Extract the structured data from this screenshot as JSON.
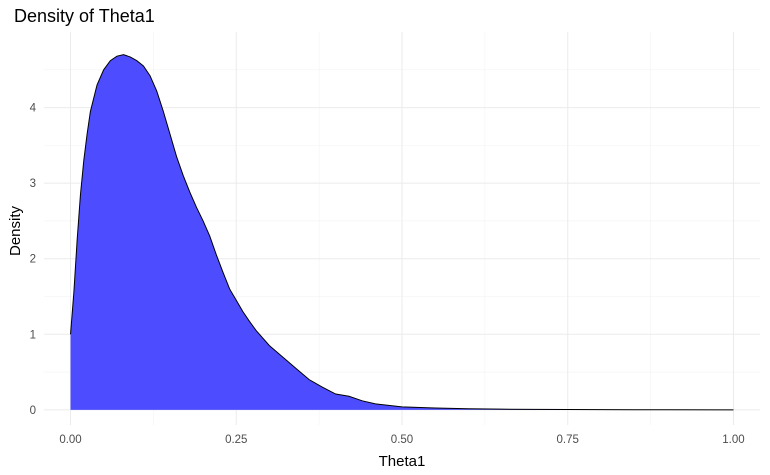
{
  "chart_data": {
    "type": "area",
    "title": "Density of Theta1",
    "xlabel": "Theta1",
    "ylabel": "Density",
    "xlim": [
      -0.04,
      1.04
    ],
    "ylim": [
      -0.2,
      5.0
    ],
    "x_ticks": [
      0.0,
      0.25,
      0.5,
      0.75,
      1.0
    ],
    "x_tick_labels": [
      "0.00",
      "0.25",
      "0.50",
      "0.75",
      "1.00"
    ],
    "y_ticks": [
      0,
      1,
      2,
      3,
      4
    ],
    "y_tick_labels": [
      "0",
      "1",
      "2",
      "3",
      "4"
    ],
    "grid": true,
    "fill_color": "#4d4dff",
    "line_color": "#000000",
    "x": [
      0.0,
      0.005,
      0.01,
      0.015,
      0.02,
      0.025,
      0.03,
      0.04,
      0.05,
      0.06,
      0.07,
      0.08,
      0.09,
      0.1,
      0.11,
      0.12,
      0.13,
      0.14,
      0.15,
      0.16,
      0.17,
      0.18,
      0.19,
      0.2,
      0.21,
      0.22,
      0.23,
      0.24,
      0.25,
      0.26,
      0.27,
      0.28,
      0.3,
      0.32,
      0.34,
      0.36,
      0.38,
      0.4,
      0.42,
      0.44,
      0.46,
      0.48,
      0.5,
      0.55,
      0.6,
      0.65,
      0.7,
      0.8,
      0.9,
      1.0
    ],
    "y": [
      1.0,
      1.55,
      2.25,
      2.85,
      3.3,
      3.65,
      3.95,
      4.3,
      4.5,
      4.62,
      4.68,
      4.7,
      4.67,
      4.62,
      4.55,
      4.42,
      4.22,
      3.95,
      3.65,
      3.35,
      3.1,
      2.88,
      2.68,
      2.5,
      2.3,
      2.05,
      1.82,
      1.6,
      1.45,
      1.3,
      1.17,
      1.05,
      0.85,
      0.7,
      0.55,
      0.4,
      0.3,
      0.21,
      0.18,
      0.12,
      0.08,
      0.06,
      0.04,
      0.025,
      0.015,
      0.01,
      0.006,
      0.003,
      0.001,
      0.0
    ]
  }
}
